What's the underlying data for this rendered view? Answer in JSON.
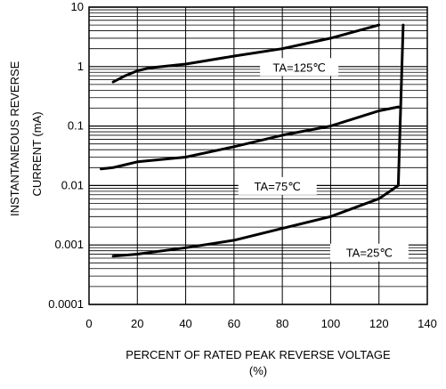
{
  "chart_data": {
    "type": "line",
    "xlabel_line1": "PERCENT OF RATED PEAK REVERSE VOLTAGE",
    "xlabel_line2": "(%)",
    "ylabel_line1": "INSTANTANEOUS REVERSE",
    "ylabel_line2": "CURRENT (mA)",
    "xlim": [
      0,
      140
    ],
    "ylim": [
      0.0001,
      10
    ],
    "yscale": "log",
    "grid": true,
    "x_ticks": [
      "0",
      "20",
      "40",
      "60",
      "80",
      "100",
      "120",
      "140"
    ],
    "y_ticks": [
      "0.0001",
      "0.001",
      "0.01",
      "0.1",
      "1",
      "10"
    ],
    "series": [
      {
        "name": "TA=125℃",
        "x": [
          10,
          15,
          20,
          25,
          40,
          60,
          80,
          100,
          120
        ],
        "y": [
          0.55,
          0.7,
          0.85,
          0.95,
          1.1,
          1.5,
          2.0,
          3.0,
          5.0
        ]
      },
      {
        "name": "TA=75℃",
        "x": [
          5,
          10,
          20,
          40,
          60,
          80,
          100,
          120,
          128
        ],
        "y": [
          0.019,
          0.02,
          0.025,
          0.03,
          0.045,
          0.07,
          0.1,
          0.18,
          0.21
        ]
      },
      {
        "name": "TA=25℃",
        "x": [
          10,
          20,
          40,
          60,
          80,
          100,
          120,
          128,
          130
        ],
        "y": [
          0.00065,
          0.0007,
          0.0009,
          0.0012,
          0.0019,
          0.003,
          0.006,
          0.01,
          5.0
        ]
      }
    ]
  }
}
